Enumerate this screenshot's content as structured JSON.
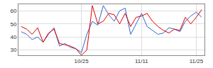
{
  "chart_data": {
    "type": "line",
    "categories": [
      null,
      null,
      null,
      null,
      null,
      null,
      null,
      null,
      null,
      null,
      null,
      "10/25",
      null,
      null,
      null,
      null,
      null,
      null,
      null,
      null,
      null,
      null,
      "11/11",
      null,
      null,
      null,
      null,
      null,
      null,
      null,
      null,
      null,
      "11/25",
      null
    ],
    "series": [
      {
        "color": "#3366cc",
        "values": [
          44,
          42,
          38,
          40,
          36,
          42,
          47,
          33,
          35,
          32,
          31,
          28,
          42,
          52,
          49,
          64,
          57,
          52,
          60,
          62,
          42,
          50,
          58,
          48,
          45,
          42,
          43,
          47,
          46,
          44,
          52,
          56,
          59,
          55
        ]
      },
      {
        "color": "#e00000",
        "values": [
          48,
          46,
          42,
          47,
          36,
          43,
          46,
          35,
          34,
          33,
          31,
          26,
          30,
          64,
          50,
          52,
          58,
          57,
          50,
          58,
          48,
          55,
          56,
          58,
          52,
          48,
          45,
          43,
          46,
          45,
          55,
          50,
          55,
          61
        ]
      }
    ],
    "ylim": [
      26,
      65
    ],
    "yticks": [
      30,
      40,
      50,
      60
    ],
    "grid": true
  }
}
